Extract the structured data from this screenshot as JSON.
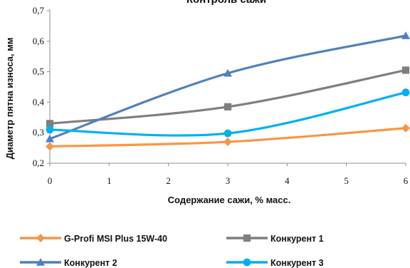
{
  "chart_data": {
    "type": "line",
    "title": "Контроль сажи",
    "xlabel": "Содержание сажи, % масс.",
    "ylabel": "Диаметр пятна износа, мм",
    "xlim": [
      0,
      6
    ],
    "ylim": [
      0.2,
      0.7
    ],
    "x_ticks": [
      "0",
      "1",
      "2",
      "3",
      "4",
      "5",
      "6"
    ],
    "y_ticks": [
      "0,2",
      "0,3",
      "0,4",
      "0,5",
      "0,6",
      "0,7"
    ],
    "x": [
      0,
      3,
      6
    ],
    "grid": false,
    "legend_position": "bottom",
    "series": [
      {
        "name": "G-Profi MSI Plus 15W-40",
        "values": [
          0.255,
          0.27,
          0.315
        ],
        "color": "#F79646",
        "marker": "diamond"
      },
      {
        "name": "Конкурент 1",
        "values": [
          0.33,
          0.385,
          0.505
        ],
        "color": "#7F7F7F",
        "marker": "square"
      },
      {
        "name": "Конкурент 2",
        "values": [
          0.28,
          0.495,
          0.618
        ],
        "color": "#4F81BD",
        "marker": "triangle"
      },
      {
        "name": "Конкурент 3",
        "values": [
          0.31,
          0.298,
          0.432
        ],
        "color": "#00B0F0",
        "marker": "circle"
      }
    ]
  }
}
